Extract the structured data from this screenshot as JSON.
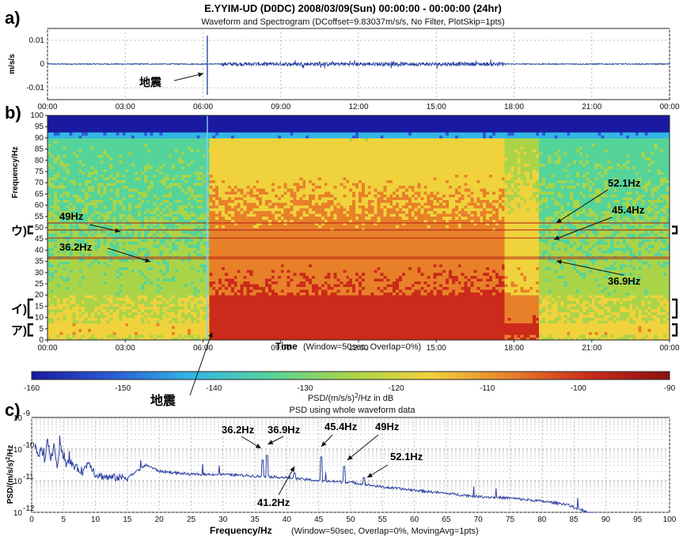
{
  "chart_data": [
    {
      "panel_letter": "a)",
      "type": "line",
      "title": "E.YYIM-UD (D0DC) 2008/03/09(Sun) 00:00:00 - 00:00:00 (24hr)",
      "subtitle": "Waveform and Spectrogram (DCoffset=9.83037m/s/s, No Filter, PlotSkip=1pts)",
      "ylabel": "m/s/s",
      "xlim_hours": [
        0,
        24
      ],
      "ylim": [
        -0.015,
        0.015
      ],
      "yticks": [
        "0.01",
        "0",
        "-0.01"
      ],
      "xticks": [
        "00:00",
        "03:00",
        "06:00",
        "09:00",
        "12:00",
        "15:00",
        "18:00",
        "21:00",
        "00:00"
      ],
      "grid": true,
      "events": [
        {
          "time": "06:10",
          "peak_amplitude": 0.012,
          "label": "地震"
        }
      ],
      "annotations": [
        {
          "text": "地震",
          "time": "06:10"
        }
      ]
    },
    {
      "panel_letter": "b)",
      "type": "heatmap",
      "ylabel": "Frequency/Hz",
      "ylim": [
        0,
        100
      ],
      "yticks": [
        "0",
        "5",
        "10",
        "15",
        "20",
        "25",
        "30",
        "35",
        "40",
        "45",
        "50",
        "55",
        "60",
        "65",
        "70",
        "75",
        "80",
        "85",
        "90",
        "95",
        "100"
      ],
      "xticks": [
        "00:00",
        "03:00",
        "06:00",
        "09:00",
        "12:00",
        "15:00",
        "18:00",
        "21:00",
        "00:00"
      ],
      "xlabel": "Time",
      "xlabel_note": "(Window=50sec, Overlap=0%)",
      "colorbar": {
        "ticks": [
          "-160",
          "-150",
          "-140",
          "-130",
          "-120",
          "-110",
          "-100",
          "-90"
        ],
        "label": "PSD/(m/s/s)",
        "label_sup": "2",
        "label_end": "/Hz in dB",
        "colors": [
          "#1a1aa0",
          "#2a5bd6",
          "#33b6e6",
          "#55d49a",
          "#aad448",
          "#f0d23c",
          "#e8802a",
          "#cc2a1a",
          "#8a1010"
        ]
      },
      "lines_hz": [
        {
          "freq": 49,
          "label": "49Hz"
        },
        {
          "freq": 36.2,
          "label": "36.2Hz"
        },
        {
          "freq": 52.1,
          "label": "52.1Hz"
        },
        {
          "freq": 45.4,
          "label": "45.4Hz"
        },
        {
          "freq": 36.9,
          "label": "36.9Hz"
        }
      ],
      "brackets": [
        {
          "label": "ウ)",
          "from_hz": 47.5,
          "to_hz": 50.5
        },
        {
          "label": "イ)",
          "from_hz": 10,
          "to_hz": 18
        },
        {
          "label": "ア)",
          "from_hz": 2,
          "to_hz": 7
        }
      ],
      "event_label": "地震"
    },
    {
      "panel_letter": "c)",
      "type": "line",
      "subtitle": "PSD using whole waveform data",
      "ylabel": "PSD/(m/s/s)",
      "ylabel_sup": "2",
      "ylabel_end": "/Hz",
      "xlabel": "Frequency/Hz",
      "xlabel_note": "(Window=50sec, Overlap=0%, MovingAvg=1pts)",
      "xlim": [
        0,
        100
      ],
      "ylim_log10": [
        -12,
        -9
      ],
      "xticks": [
        "0",
        "5",
        "10",
        "15",
        "20",
        "25",
        "30",
        "35",
        "40",
        "45",
        "50",
        "55",
        "60",
        "65",
        "70",
        "75",
        "80",
        "85",
        "90",
        "95",
        "100"
      ],
      "ytick_base": "10",
      "ytick_exps": [
        "-9",
        "-10",
        "-11",
        "-12"
      ],
      "grid": true,
      "series_log10": {
        "freq": [
          0.5,
          1,
          1.5,
          2,
          2.5,
          3,
          3.5,
          4,
          4.5,
          5,
          5.5,
          6,
          7,
          8,
          9,
          10,
          12,
          15,
          18,
          20,
          25,
          30,
          35,
          40,
          45,
          50,
          55,
          60,
          65,
          70,
          75,
          80,
          84,
          85,
          86,
          87,
          88,
          88.5
        ],
        "value": [
          -9.9,
          -10.2,
          -10.0,
          -10.4,
          -9.7,
          -10.3,
          -10.0,
          -10.5,
          -9.8,
          -10.3,
          -10.5,
          -10.4,
          -10.6,
          -10.7,
          -10.4,
          -10.8,
          -10.9,
          -10.9,
          -10.5,
          -10.7,
          -10.8,
          -10.8,
          -10.85,
          -10.9,
          -11.0,
          -11.05,
          -11.2,
          -11.3,
          -11.4,
          -11.5,
          -11.55,
          -11.65,
          -11.75,
          -11.85,
          -11.9,
          -12.0,
          -12.2,
          -12.6
        ]
      },
      "peaks": [
        {
          "freq": 36.2,
          "log10": -10.35,
          "label": "36.2Hz"
        },
        {
          "freq": 36.9,
          "log10": -10.2,
          "label": "36.9Hz"
        },
        {
          "freq": 41.2,
          "log10": -10.75,
          "label": "41.2Hz"
        },
        {
          "freq": 45.4,
          "log10": -10.25,
          "label": "45.4Hz"
        },
        {
          "freq": 49,
          "log10": -10.55,
          "label": "49Hz"
        },
        {
          "freq": 52.1,
          "log10": -10.9,
          "label": "52.1Hz"
        }
      ]
    }
  ]
}
